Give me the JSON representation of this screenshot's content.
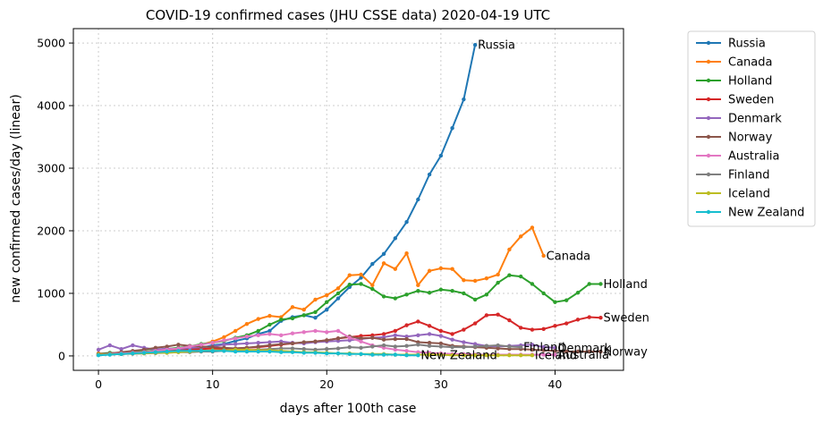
{
  "chart_data": {
    "type": "line",
    "title": "COVID-19 confirmed cases (JHU CSSE data) 2020-04-19 UTC",
    "xlabel": "days after 100th case",
    "ylabel": "new confirmed cases/day (linear)",
    "xlim": [
      -2.2,
      46
    ],
    "ylim": [
      -230,
      5230
    ],
    "xticks": [
      0,
      10,
      20,
      30,
      40
    ],
    "yticks": [
      0,
      1000,
      2000,
      3000,
      4000,
      5000
    ],
    "grid": true,
    "legend_position": "outside-right",
    "series": [
      {
        "name": "Russia",
        "color": "#1f77b4",
        "end_label": "Russia",
        "values": [
          25,
          40,
          30,
          45,
          55,
          60,
          70,
          90,
          110,
          130,
          170,
          190,
          240,
          280,
          350,
          400,
          560,
          620,
          650,
          610,
          740,
          920,
          1100,
          1250,
          1470,
          1630,
          1880,
          2140,
          2500,
          2900,
          3200,
          3640,
          4100,
          4970
        ]
      },
      {
        "name": "Canada",
        "color": "#ff7f0e",
        "end_label": "Canada",
        "values": [
          40,
          35,
          50,
          60,
          55,
          80,
          90,
          120,
          140,
          180,
          230,
          300,
          400,
          510,
          590,
          640,
          620,
          780,
          740,
          900,
          970,
          1080,
          1290,
          1300,
          1130,
          1480,
          1390,
          1640,
          1130,
          1360,
          1400,
          1390,
          1210,
          1200,
          1240,
          1300,
          1700,
          1910,
          2050,
          1600
        ]
      },
      {
        "name": "Holland",
        "color": "#2ca02c",
        "end_label": "Holland",
        "values": [
          30,
          50,
          40,
          60,
          70,
          90,
          110,
          130,
          150,
          190,
          210,
          240,
          290,
          330,
          400,
          500,
          580,
          600,
          650,
          700,
          860,
          1000,
          1140,
          1150,
          1070,
          950,
          920,
          980,
          1040,
          1010,
          1060,
          1040,
          1000,
          900,
          980,
          1170,
          1290,
          1270,
          1150,
          1000,
          860,
          890,
          1010,
          1150,
          1150
        ]
      },
      {
        "name": "Sweden",
        "color": "#d62728",
        "end_label": "Sweden",
        "values": [
          20,
          25,
          30,
          40,
          50,
          70,
          80,
          90,
          100,
          110,
          120,
          110,
          120,
          130,
          140,
          160,
          180,
          200,
          210,
          230,
          250,
          280,
          300,
          320,
          330,
          350,
          400,
          490,
          550,
          480,
          400,
          350,
          420,
          520,
          650,
          660,
          570,
          450,
          420,
          430,
          480,
          520,
          580,
          620,
          610
        ]
      },
      {
        "name": "Denmark",
        "color": "#9467bd",
        "end_label": "Denmark",
        "values": [
          100,
          170,
          110,
          170,
          130,
          100,
          120,
          110,
          130,
          140,
          150,
          180,
          190,
          200,
          210,
          220,
          230,
          210,
          200,
          220,
          230,
          240,
          250,
          270,
          290,
          300,
          330,
          310,
          330,
          350,
          320,
          260,
          220,
          190,
          160,
          150,
          160,
          170,
          180,
          140,
          130
        ]
      },
      {
        "name": "Norway",
        "color": "#8c564b",
        "end_label": "Norway",
        "values": [
          30,
          40,
          60,
          80,
          100,
          130,
          150,
          180,
          160,
          150,
          140,
          130,
          120,
          130,
          150,
          170,
          190,
          200,
          220,
          230,
          250,
          280,
          310,
          280,
          290,
          260,
          270,
          270,
          220,
          210,
          200,
          160,
          150,
          140,
          130,
          120,
          110,
          110,
          100,
          90,
          80,
          70,
          70,
          70,
          70
        ]
      },
      {
        "name": "Australia",
        "color": "#e377c2",
        "end_label": "Australia",
        "values": [
          20,
          30,
          40,
          50,
          60,
          80,
          100,
          120,
          150,
          180,
          210,
          250,
          280,
          310,
          330,
          350,
          330,
          360,
          380,
          400,
          380,
          400,
          290,
          230,
          170,
          130,
          100,
          80,
          60,
          50,
          40,
          30,
          30,
          20,
          20,
          20,
          20,
          20,
          20,
          20,
          20
        ]
      },
      {
        "name": "Finland",
        "color": "#7f7f7f",
        "end_label": "Finland",
        "values": [
          20,
          25,
          30,
          35,
          40,
          45,
          50,
          60,
          60,
          70,
          70,
          80,
          80,
          90,
          100,
          110,
          120,
          120,
          110,
          100,
          110,
          120,
          140,
          130,
          150,
          170,
          150,
          160,
          180,
          160,
          150,
          140,
          140,
          150,
          160,
          170,
          150,
          140
        ]
      },
      {
        "name": "Iceland",
        "color": "#bcbd22",
        "end_label": "Iceland",
        "values": [
          20,
          25,
          30,
          40,
          40,
          50,
          50,
          60,
          70,
          80,
          90,
          90,
          100,
          100,
          90,
          90,
          80,
          70,
          60,
          60,
          50,
          40,
          40,
          30,
          30,
          30,
          20,
          20,
          20,
          20,
          20,
          10,
          10,
          10,
          10,
          10,
          10,
          10,
          10
        ]
      },
      {
        "name": "New Zealand",
        "color": "#17becf",
        "end_label": "New Zealand",
        "values": [
          10,
          20,
          30,
          40,
          50,
          60,
          70,
          80,
          80,
          80,
          80,
          80,
          70,
          70,
          70,
          70,
          60,
          60,
          50,
          50,
          40,
          40,
          30,
          30,
          20,
          20,
          20,
          10,
          10
        ]
      }
    ]
  }
}
